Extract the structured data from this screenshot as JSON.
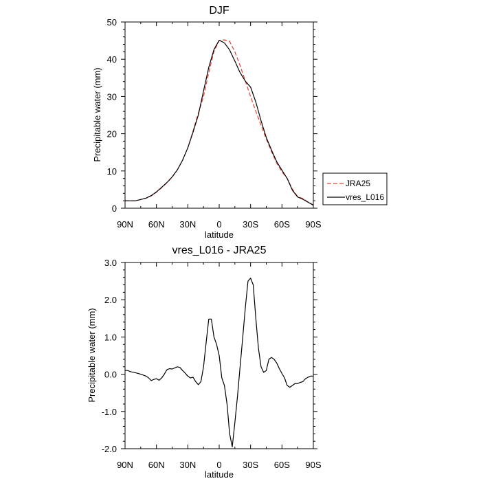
{
  "chart_data": [
    {
      "type": "line",
      "title": "DJF",
      "xlabel": "latitude",
      "ylabel": "Precipitable water (mm)",
      "xlim": [
        90,
        -90
      ],
      "ylim": [
        0,
        50
      ],
      "xticks": [
        90,
        60,
        30,
        0,
        -30,
        -60,
        -90
      ],
      "xtick_labels": [
        "90N",
        "60N",
        "30N",
        "0",
        "30S",
        "60S",
        "90S"
      ],
      "yticks": [
        0,
        10,
        20,
        30,
        40,
        50
      ],
      "ytick_labels": [
        "0",
        "10",
        "20",
        "30",
        "40",
        "50"
      ],
      "legend": {
        "placement": "right",
        "entries": [
          {
            "name": "JRA25",
            "color": "#e8402f",
            "style": "dashed"
          },
          {
            "name": "vres_L016",
            "color": "#000000",
            "style": "solid"
          }
        ]
      },
      "series": [
        {
          "name": "JRA25",
          "color": "#e8402f",
          "style": "dashed",
          "x": [
            90,
            80,
            70,
            65,
            60,
            55,
            50,
            45,
            40,
            35,
            30,
            25,
            20,
            15,
            10,
            5,
            0,
            -5,
            -10,
            -15,
            -20,
            -25,
            -30,
            -35,
            -40,
            -45,
            -50,
            -55,
            -60,
            -65,
            -70,
            -75,
            -80,
            -85,
            -90
          ],
          "y": [
            2.0,
            2.0,
            2.7,
            3.3,
            4.3,
            5.5,
            6.8,
            8.3,
            10.3,
            12.9,
            16.2,
            20.7,
            25.5,
            30.0,
            36.4,
            42.1,
            45.0,
            45.2,
            44.8,
            42.0,
            38.3,
            34.1,
            30.0,
            26.0,
            22.3,
            18.6,
            15.2,
            12.1,
            9.8,
            8.0,
            5.1,
            3.1,
            2.6,
            1.6,
            0.9
          ]
        },
        {
          "name": "vres_L016",
          "color": "#000000",
          "style": "solid",
          "x": [
            90,
            80,
            70,
            65,
            60,
            55,
            50,
            45,
            40,
            35,
            30,
            25,
            20,
            15,
            10,
            5,
            0,
            -5,
            -10,
            -15,
            -20,
            -25,
            -30,
            -35,
            -40,
            -45,
            -50,
            -55,
            -60,
            -65,
            -70,
            -75,
            -80,
            -85,
            -90
          ],
          "y": [
            2.0,
            2.0,
            2.7,
            3.4,
            4.4,
            5.6,
            6.9,
            8.4,
            10.3,
            12.9,
            16.2,
            20.4,
            25.0,
            31.5,
            37.8,
            42.6,
            45.1,
            44.4,
            42.5,
            39.5,
            36.4,
            34.1,
            32.5,
            28.5,
            23.5,
            19.0,
            15.6,
            12.5,
            10.2,
            8.0,
            4.8,
            3.0,
            2.4,
            1.6,
            0.8
          ]
        }
      ]
    },
    {
      "type": "line",
      "title": "vres_L016 - JRA25",
      "xlabel": "latitude",
      "ylabel": "Precipitable water (mm)",
      "xlim": [
        90,
        -90
      ],
      "ylim": [
        -2.0,
        3.0
      ],
      "xticks": [
        90,
        60,
        30,
        0,
        -30,
        -60,
        -90
      ],
      "xtick_labels": [
        "90N",
        "60N",
        "30N",
        "0",
        "30S",
        "60S",
        "90S"
      ],
      "yticks": [
        3.0,
        2.0,
        1.0,
        0.0,
        -1.0,
        -2.0
      ],
      "ytick_labels": [
        "3.0",
        "2.0",
        "1.0",
        "0.0",
        "-1.0",
        "-2.0"
      ],
      "series": [
        {
          "name": "vres_L016 - JRA25",
          "color": "#000000",
          "style": "solid",
          "x": [
            90,
            87.5,
            85,
            80,
            75,
            70,
            67.5,
            65,
            62.5,
            60,
            57.5,
            55,
            52.5,
            50,
            47.5,
            45,
            42.5,
            40,
            37.5,
            35,
            32.5,
            30,
            27.5,
            25,
            22.5,
            20,
            17.5,
            15,
            12.5,
            10,
            7.5,
            5,
            2.5,
            0,
            -2.5,
            -5,
            -7.5,
            -10,
            -12.5,
            -15,
            -17.5,
            -20,
            -22.5,
            -25,
            -27.5,
            -30,
            -32.5,
            -35,
            -37.5,
            -40,
            -42.5,
            -45,
            -47.5,
            -50,
            -52.5,
            -55,
            -57.5,
            -60,
            -62.5,
            -65,
            -67.5,
            -70,
            -72.5,
            -75,
            -77.5,
            -80,
            -82.5,
            -85,
            -87.5,
            -90
          ],
          "y": [
            0.1,
            0.1,
            0.07,
            0.04,
            0.0,
            -0.05,
            -0.1,
            -0.17,
            -0.14,
            -0.12,
            -0.16,
            -0.1,
            0.0,
            0.12,
            0.15,
            0.14,
            0.17,
            0.2,
            0.18,
            0.1,
            0.03,
            -0.05,
            -0.1,
            -0.08,
            -0.2,
            -0.28,
            -0.2,
            0.2,
            0.85,
            1.48,
            1.48,
            1.0,
            0.8,
            0.5,
            -0.1,
            -0.3,
            -0.8,
            -1.6,
            -1.95,
            -1.3,
            -0.6,
            0.2,
            1.0,
            1.8,
            2.5,
            2.58,
            2.4,
            1.5,
            0.7,
            0.2,
            0.05,
            0.1,
            0.4,
            0.45,
            0.4,
            0.3,
            0.15,
            0.02,
            -0.1,
            -0.3,
            -0.35,
            -0.3,
            -0.25,
            -0.25,
            -0.22,
            -0.2,
            -0.12,
            -0.08,
            -0.05,
            -0.05
          ]
        }
      ]
    }
  ]
}
